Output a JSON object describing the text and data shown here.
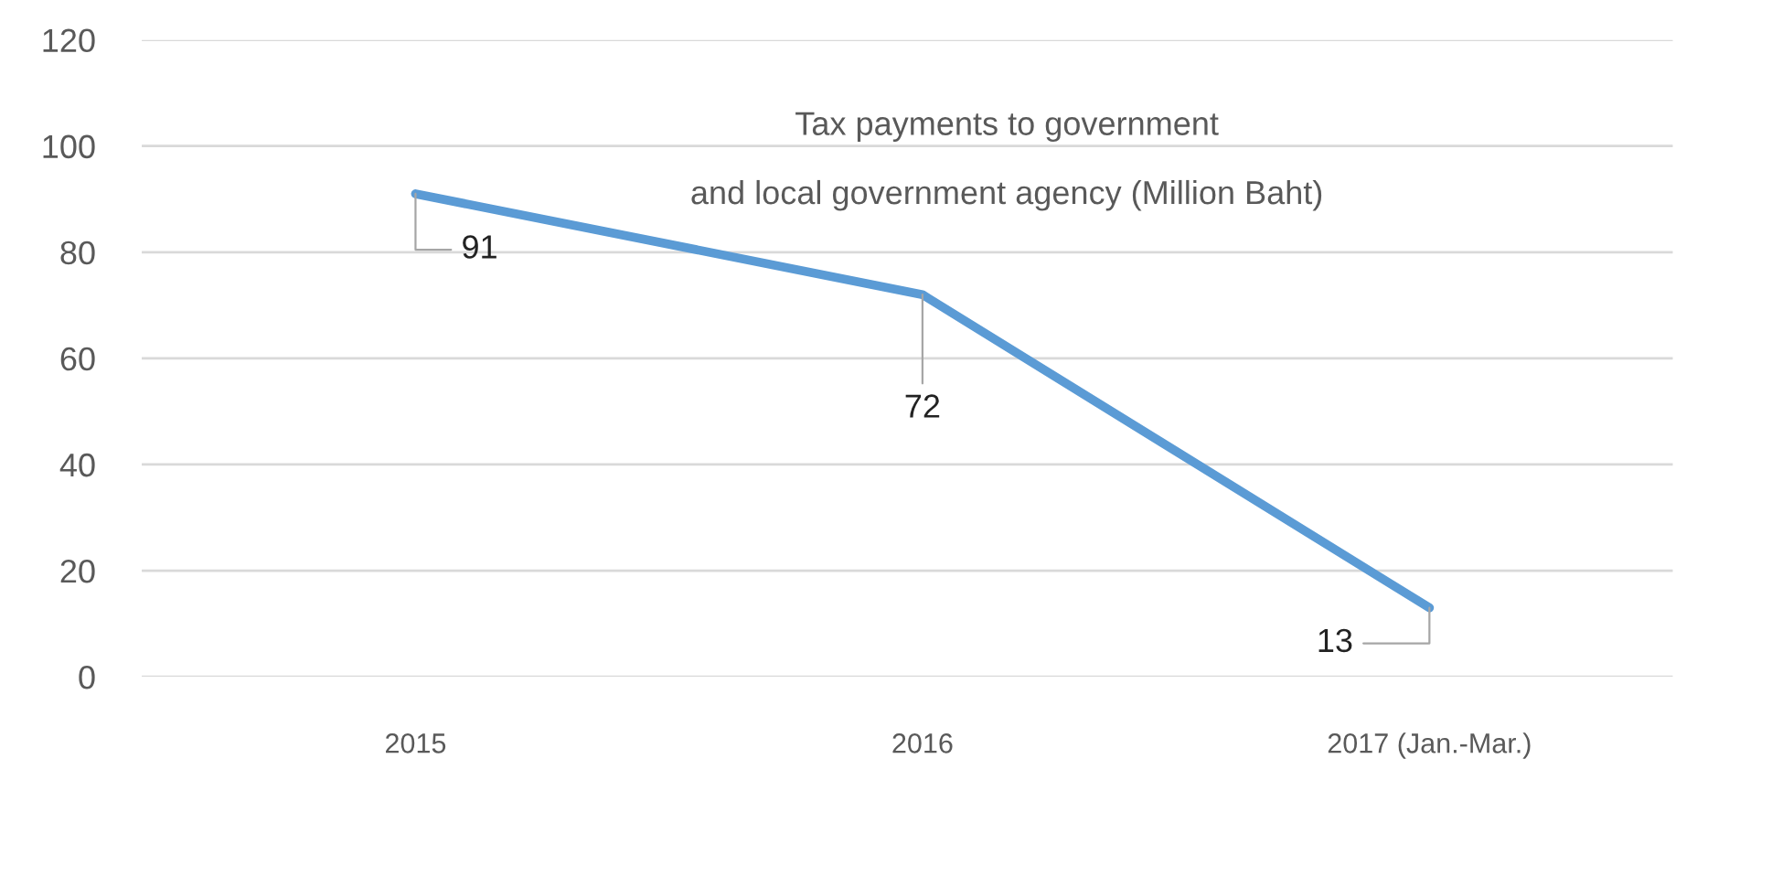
{
  "chart_data": {
    "type": "line",
    "title": "Tax payments to government\nand local government agency (Million Baht)",
    "categories": [
      "2015",
      "2016",
      "2017 (Jan.-Mar.)"
    ],
    "series": [
      {
        "color": "#5b9bd5",
        "values": [
          91,
          72,
          13
        ]
      }
    ],
    "ylim": [
      0,
      120
    ],
    "yticks": [
      0,
      20,
      40,
      60,
      80,
      100,
      120
    ],
    "grid": "y",
    "marker": "none",
    "line_style": "solid",
    "data_labels": true
  }
}
